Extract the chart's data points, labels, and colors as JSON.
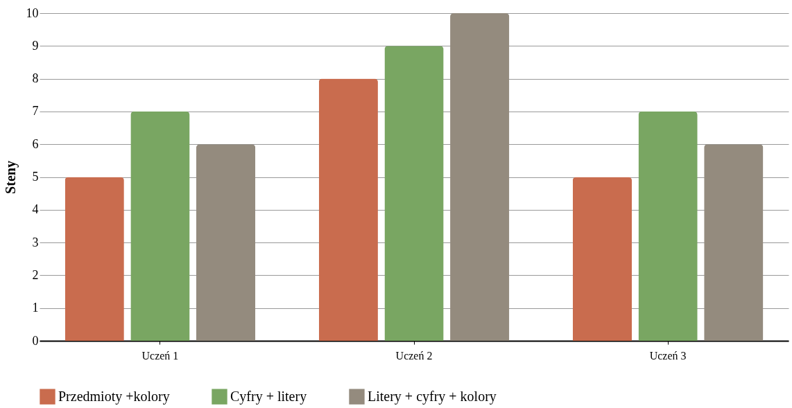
{
  "chart_data": {
    "type": "bar",
    "ylabel": "Steny",
    "categories": [
      "Uczeń 1",
      "Uczeń 2",
      "Uczeń 3"
    ],
    "series": [
      {
        "name": "Przedmioty +kolory",
        "color": "#c96c4e",
        "values": [
          5,
          8,
          5
        ]
      },
      {
        "name": "Cyfry + litery",
        "color": "#79a662",
        "values": [
          7,
          9,
          7
        ]
      },
      {
        "name": "Litery + cyfry + kolory",
        "color": "#948b7e",
        "values": [
          6,
          10,
          6
        ]
      }
    ],
    "ylim": [
      0,
      10
    ],
    "yticks": [
      0,
      1,
      2,
      3,
      4,
      5,
      6,
      7,
      8,
      9,
      10
    ],
    "grid": "y",
    "legend": "bottom"
  }
}
